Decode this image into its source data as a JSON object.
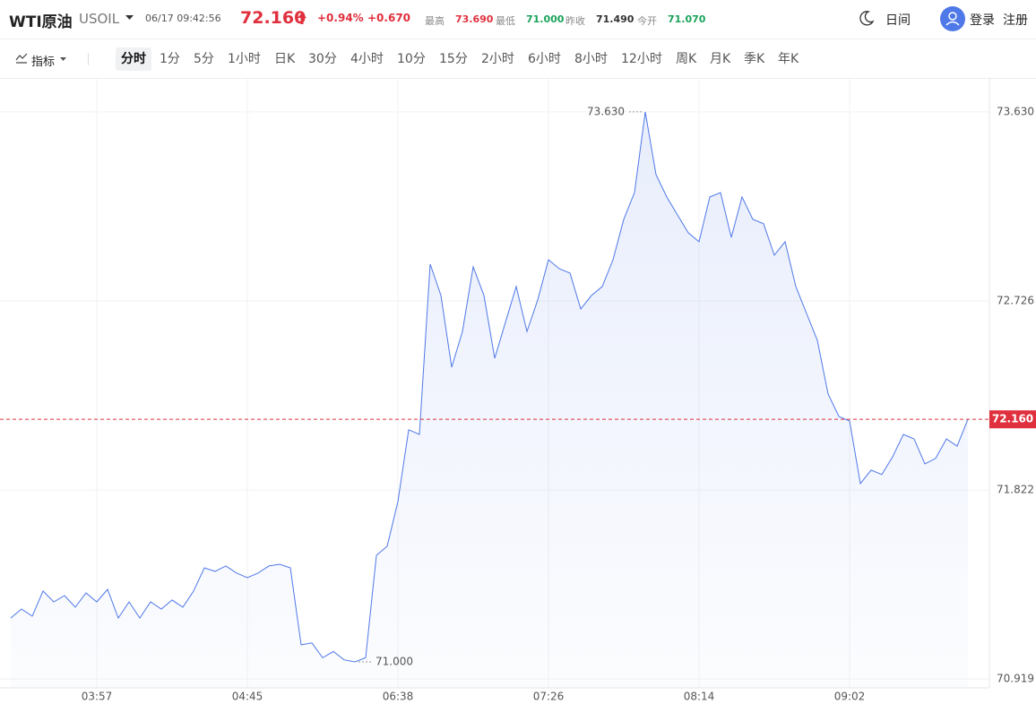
{
  "header": {
    "title": "WTI原油",
    "symbol": "USOIL",
    "datetime": "06/17 09:42:56",
    "price": "72.160",
    "change_pct": "+0.94%",
    "change": "+0.670",
    "stats": [
      {
        "label": "最高",
        "value": "73.690"
      },
      {
        "label": "最低",
        "value": "71.000"
      },
      {
        "label": "昨收",
        "value": "71.490"
      },
      {
        "label": "今开",
        "value": "71.070"
      }
    ],
    "theme": "日间",
    "login": "登录",
    "register": "注册"
  },
  "toolbar": {
    "indicator": "指标",
    "active": 0,
    "intervals": [
      "分时",
      "1分",
      "5分",
      "1小时",
      "日K",
      "30分",
      "4小时",
      "10分",
      "15分",
      "2小时",
      "6小时",
      "8小时",
      "12小时",
      "周K",
      "月K",
      "季K",
      "年K"
    ]
  },
  "chart_data": {
    "type": "line",
    "color": "#4f78e8",
    "values": [
      71.21,
      71.253,
      71.219,
      71.339,
      71.287,
      71.317,
      71.262,
      71.33,
      71.287,
      71.347,
      71.21,
      71.287,
      71.21,
      71.287,
      71.253,
      71.296,
      71.262,
      71.339,
      71.45,
      71.433,
      71.459,
      71.425,
      71.403,
      71.425,
      71.459,
      71.467,
      71.45,
      71.082,
      71.091,
      71.02,
      71.05,
      71.01,
      71.0,
      71.02,
      71.51,
      71.553,
      71.767,
      72.11,
      72.088,
      72.902,
      72.752,
      72.409,
      72.58,
      72.889,
      72.752,
      72.452,
      72.624,
      72.795,
      72.58,
      72.731,
      72.923,
      72.88,
      72.859,
      72.688,
      72.752,
      72.795,
      72.923,
      73.116,
      73.244,
      73.63,
      73.33,
      73.223,
      73.137,
      73.052,
      73.009,
      73.223,
      73.244,
      73.03,
      73.223,
      73.116,
      73.095,
      72.945,
      73.009,
      72.795,
      72.666,
      72.538,
      72.281,
      72.174,
      72.152,
      71.853,
      71.917,
      71.896,
      71.981,
      72.088,
      72.066,
      71.947,
      71.973,
      72.066,
      72.032,
      72.16
    ],
    "xlim": [
      -0.5,
      89.5
    ],
    "xticks": [
      {
        "value": 8,
        "label": "03:57"
      },
      {
        "value": 22,
        "label": "04:45"
      },
      {
        "value": 36,
        "label": "06:38"
      },
      {
        "value": 50,
        "label": "07:26"
      },
      {
        "value": 64,
        "label": "08:14"
      },
      {
        "value": 78,
        "label": "09:02"
      }
    ],
    "ylim": [
      70.876,
      73.788
    ],
    "yticks": [
      {
        "value": 73.63,
        "label": "73.630"
      },
      72.726,
      71.822,
      70.919
    ],
    "grid": true,
    "current": {
      "value": 72.16,
      "label": "72.160",
      "color": "#e0303e"
    },
    "annotations": [
      {
        "x": 59,
        "value": 73.63,
        "label": "73.630",
        "side": "left"
      },
      {
        "x": 32,
        "value": 71.0,
        "label": "71.000",
        "side": "right"
      }
    ]
  }
}
